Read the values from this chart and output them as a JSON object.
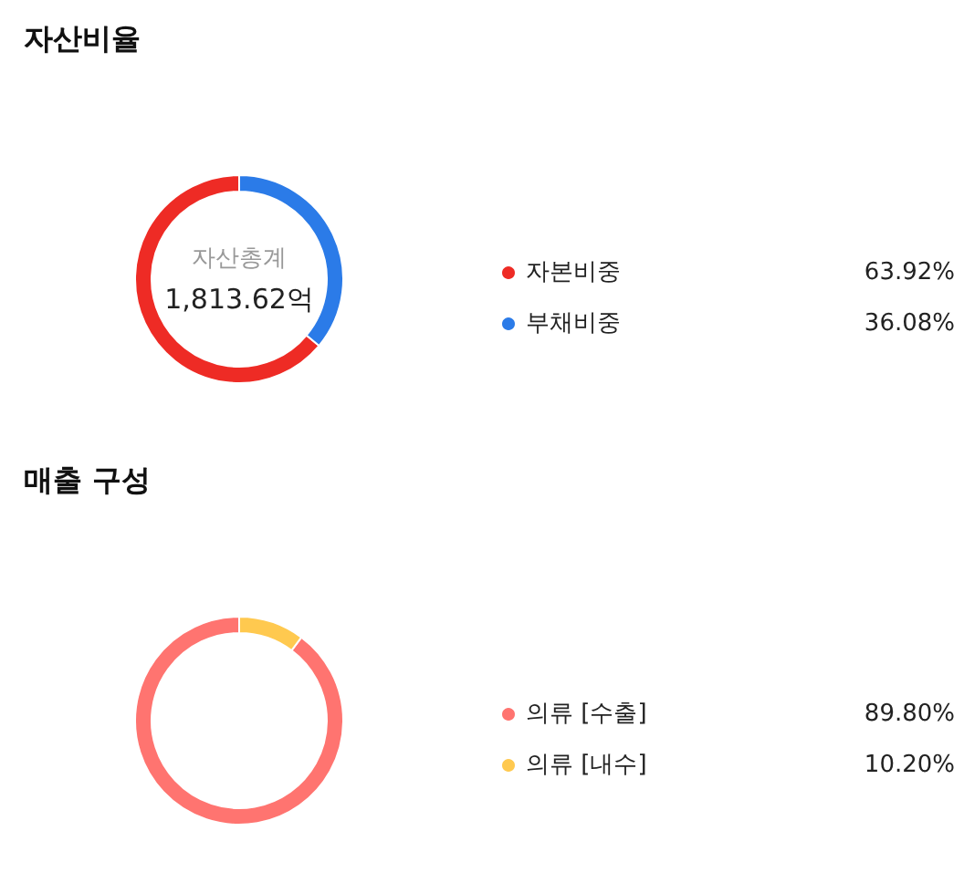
{
  "chart_data": [
    {
      "type": "donut",
      "title": "자산비율",
      "categories": [
        "자본비중",
        "부채비중"
      ],
      "values": [
        63.92,
        36.08
      ],
      "colors": [
        "#ee2b25",
        "#2b7be8"
      ],
      "value_labels": [
        "63.92%",
        "36.08%"
      ],
      "legend": "right",
      "annotations": [
        "자산총계",
        "1,813.62억"
      ]
    },
    {
      "type": "donut",
      "title": "매출 구성",
      "categories": [
        "의류 [수출]",
        "의류 [내수]"
      ],
      "values": [
        89.8,
        10.2
      ],
      "colors": [
        "#ff7470",
        "#ffc94f"
      ],
      "value_labels": [
        "89.80%",
        "10.20%"
      ],
      "legend": "right"
    }
  ]
}
